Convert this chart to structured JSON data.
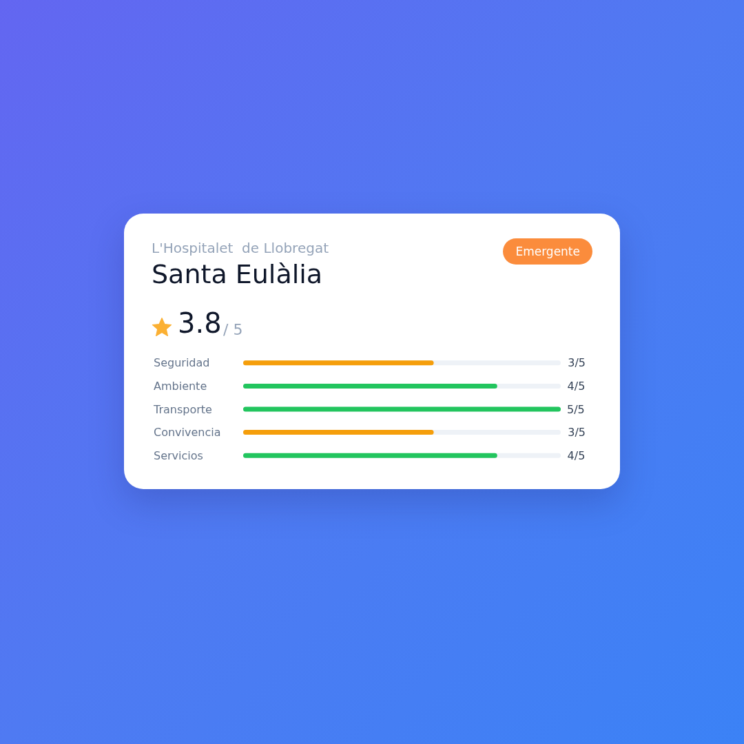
{
  "chart_data": {
    "type": "bar",
    "orientation": "horizontal",
    "title": "Santa Eulàlia",
    "subtitle": "L'Hospitalet  de Llobregat",
    "annotations": [
      "Emergente",
      "3.8",
      "/ 5"
    ],
    "categories": [
      "Seguridad",
      "Ambiente",
      "Transporte",
      "Convivencia",
      "Servicios"
    ],
    "values": [
      0.6,
      0.8,
      1,
      0.6,
      0.8
    ],
    "colors": [
      "#f59e0b",
      "#22c55e",
      "#22c55e",
      "#f59e0b",
      "#22c55e"
    ],
    "value_labels": [
      "3/5",
      "4/5",
      "5/5",
      "3/5",
      "4/5"
    ],
    "xlim": [
      0,
      1
    ]
  }
}
